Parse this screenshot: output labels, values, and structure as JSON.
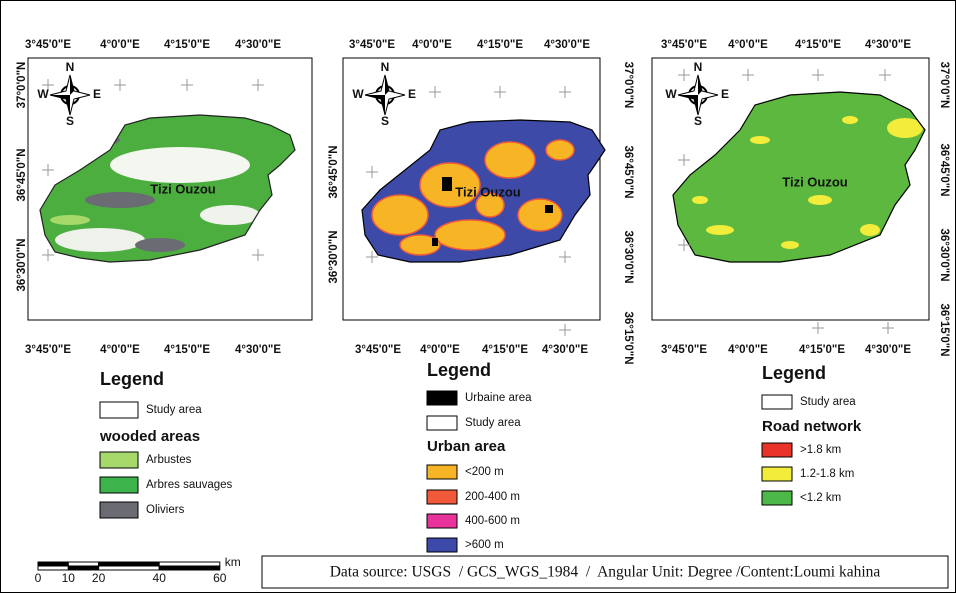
{
  "maps": [
    {
      "top_ticks": [
        "3°45'0\"E",
        "4°0'0\"E",
        "4°15'0\"E",
        "4°30'0\"E"
      ],
      "bottom_ticks": [
        "3°45'0\"E",
        "4°0'0\"E",
        "4°15'0\"E",
        "4°30'0\"E"
      ],
      "left_ticks": [
        "37°0'0\"N",
        "36°45'0\"N",
        "36°30'0\"N"
      ],
      "place_label": "Tizi Ouzou",
      "compass": {
        "n": "N",
        "e": "E",
        "s": "S",
        "w": "W"
      },
      "legend": {
        "title": "Legend",
        "entries": [
          {
            "label": "Study area",
            "color": "#ffffff"
          }
        ],
        "section": "wooded areas",
        "items": [
          {
            "label": "Arbustes",
            "color": "#a6d96a"
          },
          {
            "label": "Arbres sauvages",
            "color": "#3cb44b"
          },
          {
            "label": "Oliviers",
            "color": "#6b6b73"
          }
        ]
      }
    },
    {
      "top_ticks": [
        "3°45'0\"E",
        "4°0'0\"E",
        "4°15'0\"E",
        "4°30'0\"E"
      ],
      "bottom_ticks": [
        "3°45'0\"E",
        "4°0'0\"E",
        "4°15'0\"E",
        "4°30'0\"E"
      ],
      "left_ticks": [
        "36°45'0\"N",
        "36°30'0\"N"
      ],
      "right_ticks": [
        "37°0'0\"N",
        "36°45'0\"N",
        "36°30'0\"N",
        "36°15'0\"N"
      ],
      "place_label": "Tizi Ouzou",
      "compass": {
        "n": "N",
        "e": "E",
        "s": "S",
        "w": "W"
      },
      "legend": {
        "title": "Legend",
        "entries": [
          {
            "label": "Urbaine area",
            "color": "#000000"
          },
          {
            "label": "Study area",
            "color": "#ffffff"
          }
        ],
        "section": "Urban area",
        "items": [
          {
            "label": "<200 m",
            "color": "#f7b526"
          },
          {
            "label": "200-400 m",
            "color": "#f05a3a"
          },
          {
            "label": "400-600 m",
            "color": "#e8349a"
          },
          {
            "label": ">600 m",
            "color": "#3c49a8"
          }
        ]
      }
    },
    {
      "top_ticks": [
        "3°45'0\"E",
        "4°0'0\"E",
        "4°15'0\"E",
        "4°30'0\"E"
      ],
      "bottom_ticks": [
        "3°45'0\"E",
        "4°0'0\"E",
        "4°15'0\"E",
        "4°30'0\"E"
      ],
      "right_ticks": [
        "37°0'0\"N",
        "36°45'0\"N",
        "36°30'0\"N",
        "36°15'0\"N"
      ],
      "place_label": "Tizi Ouzou",
      "compass": {
        "n": "N",
        "e": "E",
        "s": "S",
        "w": "W"
      },
      "legend": {
        "title": "Legend",
        "entries": [
          {
            "label": "Study area",
            "color": "#ffffff"
          }
        ],
        "section": "Road network",
        "items": [
          {
            "label": ">1.8 km",
            "color": "#e8322a"
          },
          {
            "label": "1.2-1.8 km",
            "color": "#f2ec3a"
          },
          {
            "label": "<1.2 km",
            "color": "#4cb848"
          }
        ]
      }
    }
  ],
  "scale_bar": {
    "ticks": [
      0,
      10,
      20,
      40,
      60
    ],
    "unit": "km"
  },
  "source": "Data source: USGS  / GCS_WGS_1984  /  Angular Unit: Degree /Content:Loumi kahina"
}
